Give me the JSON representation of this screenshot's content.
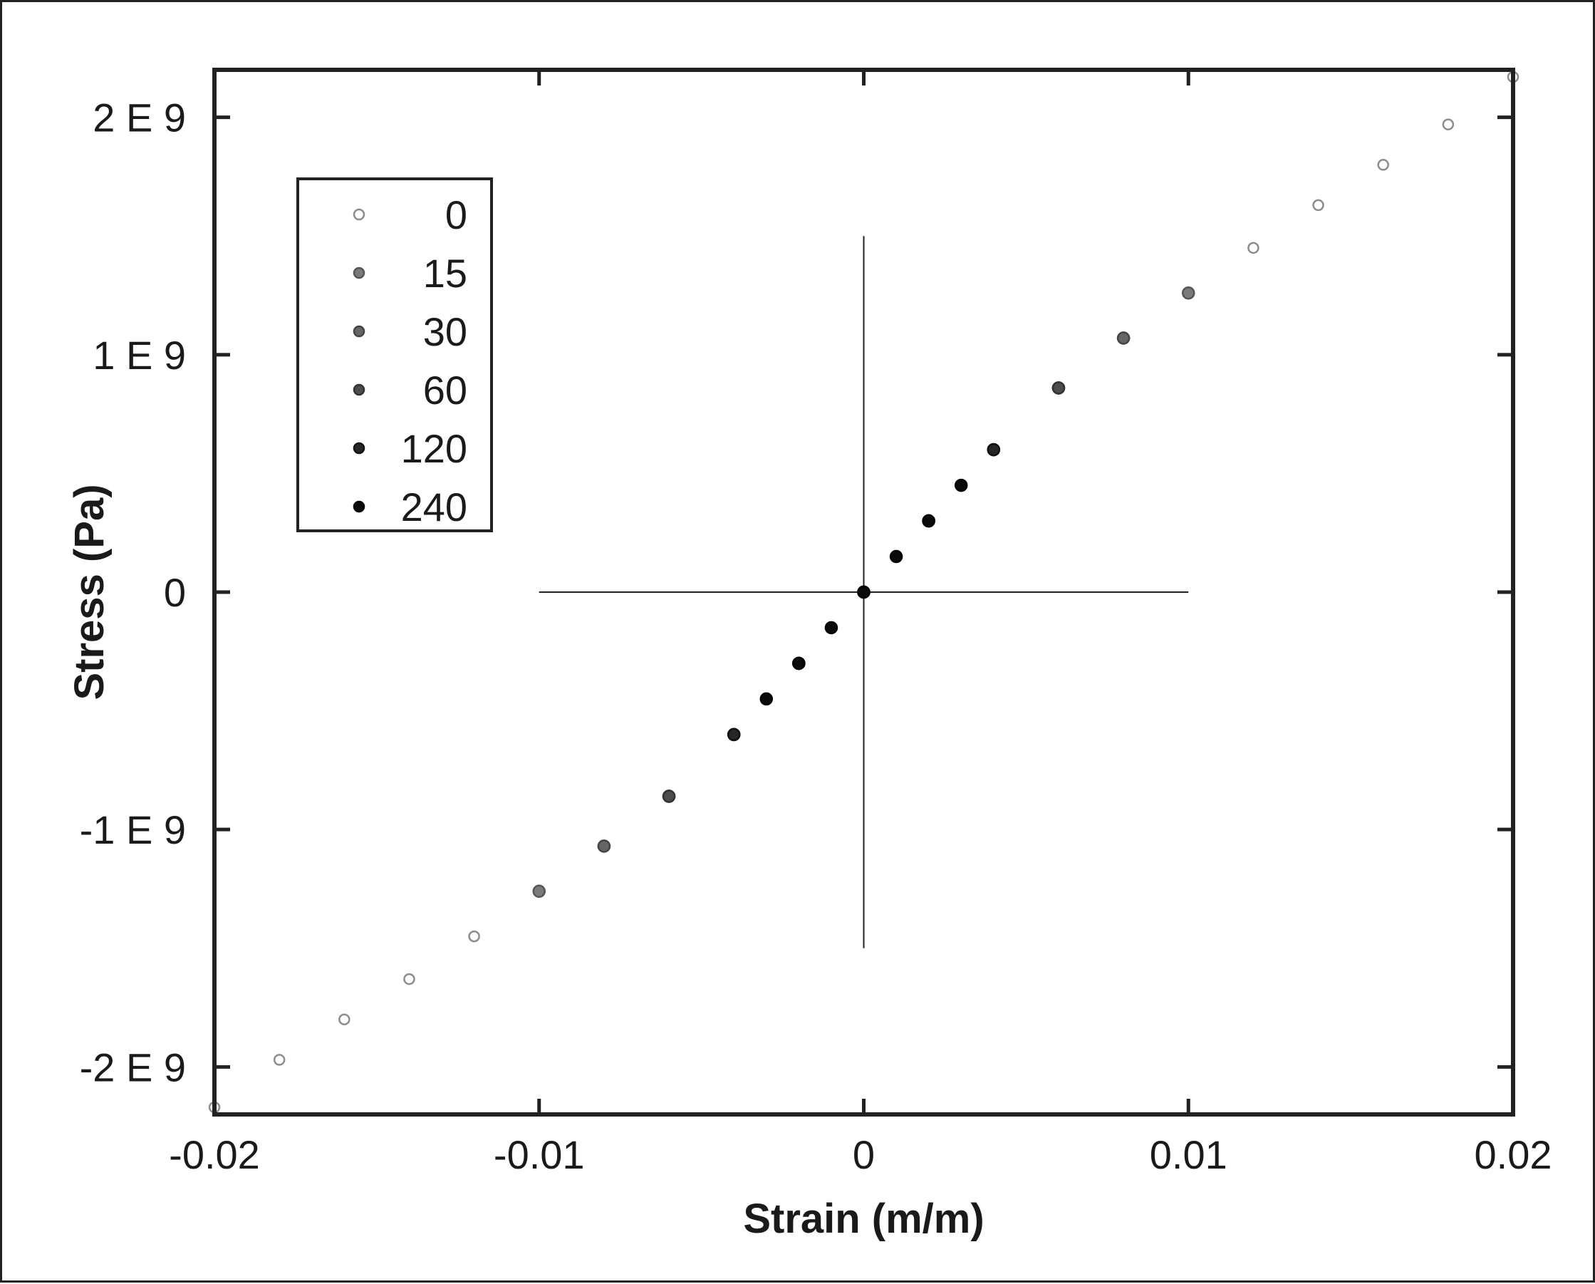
{
  "chart_data": {
    "type": "scatter",
    "xlabel": "Strain (m/m)",
    "ylabel": "Stress (Pa)",
    "xlim": [
      -0.02,
      0.02
    ],
    "ylim": [
      -2200000000.0,
      2200000000.0
    ],
    "x_ticks": [
      -0.02,
      -0.01,
      0,
      0.01,
      0.02
    ],
    "x_tick_labels": [
      "-0.02",
      "-0.01",
      "0",
      "0.01",
      "0.02"
    ],
    "y_ticks": [
      -2000000000.0,
      -1000000000.0,
      0,
      1000000000.0,
      2000000000.0
    ],
    "y_tick_labels": [
      "-2 E 9",
      "-1 E 9",
      "0",
      "1 E 9",
      "2 E 9"
    ],
    "grid": false,
    "legend_position": "top-left",
    "reference_lines": [
      {
        "orientation": "horizontal",
        "y": 0,
        "x_range": [
          -0.01,
          0.01
        ]
      },
      {
        "orientation": "vertical",
        "x": 0,
        "y_range": [
          -1500000000.0,
          1500000000.0
        ]
      }
    ],
    "series": [
      {
        "name": "0",
        "fill": "#ffffff",
        "stroke": "#8c8c8c",
        "x": [
          -0.02,
          -0.018,
          -0.016,
          -0.014,
          -0.012,
          -0.01,
          -0.008,
          -0.006,
          -0.004,
          -0.002,
          0,
          0.002,
          0.004,
          0.006,
          0.008,
          0.01,
          0.012,
          0.014,
          0.016,
          0.018,
          0.02
        ],
        "y": [
          -2170000000.0,
          -1970000000.0,
          -1800000000.0,
          -1630000000.0,
          -1450000000.0,
          -1260000000.0,
          -1070000000.0,
          -860000000.0,
          -600000000.0,
          -300000000.0,
          0,
          300000000.0,
          600000000.0,
          860000000.0,
          1070000000.0,
          1260000000.0,
          1450000000.0,
          1630000000.0,
          1800000000.0,
          1970000000.0,
          2170000000.0
        ]
      },
      {
        "name": "15",
        "fill": "#7a7a7a",
        "stroke": "#555555",
        "x": [
          -0.01,
          -0.008,
          -0.006,
          -0.004,
          -0.002,
          0,
          0.002,
          0.004,
          0.006,
          0.008,
          0.01
        ],
        "y": [
          -1260000000.0,
          -1070000000.0,
          -860000000.0,
          -600000000.0,
          -300000000.0,
          0,
          300000000.0,
          600000000.0,
          860000000.0,
          1070000000.0,
          1260000000.0
        ]
      },
      {
        "name": "30",
        "fill": "#666666",
        "stroke": "#444444",
        "x": [
          -0.008,
          -0.006,
          -0.004,
          -0.002,
          0,
          0.002,
          0.004,
          0.006,
          0.008
        ],
        "y": [
          -1070000000.0,
          -860000000.0,
          -600000000.0,
          -300000000.0,
          0,
          300000000.0,
          600000000.0,
          860000000.0,
          1070000000.0
        ]
      },
      {
        "name": "60",
        "fill": "#4d4d4d",
        "stroke": "#333333",
        "x": [
          -0.006,
          -0.004,
          -0.002,
          0,
          0.002,
          0.004,
          0.006
        ],
        "y": [
          -860000000.0,
          -600000000.0,
          -300000000.0,
          0,
          300000000.0,
          600000000.0,
          860000000.0
        ]
      },
      {
        "name": "120",
        "fill": "#262626",
        "stroke": "#111111",
        "x": [
          -0.004,
          -0.002,
          0,
          0.002,
          0.004
        ],
        "y": [
          -600000000.0,
          -300000000.0,
          0,
          300000000.0,
          600000000.0
        ]
      },
      {
        "name": "240",
        "fill": "#0a0a0a",
        "stroke": "#000000",
        "x": [
          -0.003,
          -0.002,
          -0.001,
          0,
          0.001,
          0.002,
          0.003
        ],
        "y": [
          -450000000.0,
          -300000000.0,
          -150000000.0,
          0,
          150000000.0,
          300000000.0,
          450000000.0
        ]
      }
    ]
  }
}
